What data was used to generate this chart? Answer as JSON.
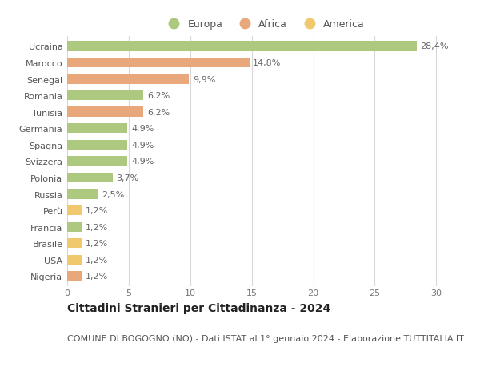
{
  "categories": [
    "Ucraina",
    "Marocco",
    "Senegal",
    "Romania",
    "Tunisia",
    "Germania",
    "Spagna",
    "Svizzera",
    "Polonia",
    "Russia",
    "Perù",
    "Francia",
    "Brasile",
    "USA",
    "Nigeria"
  ],
  "values": [
    28.4,
    14.8,
    9.9,
    6.2,
    6.2,
    4.9,
    4.9,
    4.9,
    3.7,
    2.5,
    1.2,
    1.2,
    1.2,
    1.2,
    1.2
  ],
  "labels": [
    "28,4%",
    "14,8%",
    "9,9%",
    "6,2%",
    "6,2%",
    "4,9%",
    "4,9%",
    "4,9%",
    "3,7%",
    "2,5%",
    "1,2%",
    "1,2%",
    "1,2%",
    "1,2%",
    "1,2%"
  ],
  "continents": [
    "Europa",
    "Africa",
    "Africa",
    "Europa",
    "Africa",
    "Europa",
    "Europa",
    "Europa",
    "Europa",
    "Europa",
    "America",
    "Europa",
    "America",
    "America",
    "Africa"
  ],
  "colors": {
    "Europa": "#adc97f",
    "Africa": "#e8a87c",
    "America": "#f0c96e"
  },
  "legend_order": [
    "Europa",
    "Africa",
    "America"
  ],
  "title": "Cittadini Stranieri per Cittadinanza - 2024",
  "subtitle": "COMUNE DI BOGOGNO (NO) - Dati ISTAT al 1° gennaio 2024 - Elaborazione TUTTITALIA.IT",
  "xlim": [
    0,
    32
  ],
  "xticks": [
    0,
    5,
    10,
    15,
    20,
    25,
    30
  ],
  "background_color": "#ffffff",
  "grid_color": "#d8d8d8",
  "bar_height": 0.6,
  "title_fontsize": 10,
  "subtitle_fontsize": 8,
  "label_fontsize": 8,
  "tick_fontsize": 8,
  "legend_fontsize": 9
}
